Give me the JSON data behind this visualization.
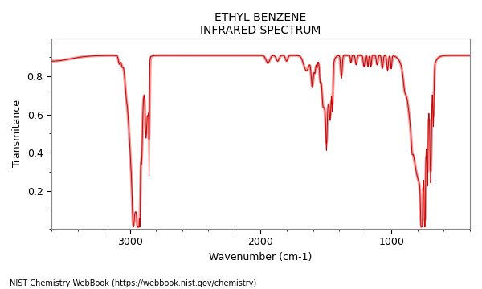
{
  "title_line1": "ETHYL BENZENE",
  "title_line2": "INFRARED SPECTRUM",
  "xlabel": "Wavenumber (cm-1)",
  "ylabel": "Transmitance",
  "footnote": "NIST Chemistry WebBook (https://webbook.nist.gov/chemistry)",
  "xmin": 3600,
  "xmax": 400,
  "ymin": 0.0,
  "ymax": 1.0,
  "line_color_thin": "#1a1a1a",
  "line_color_thick": "#e87070",
  "background_color": "#ffffff",
  "xticks": [
    3000,
    2000,
    1000
  ],
  "yticks": [
    0.2,
    0.4,
    0.6,
    0.8
  ]
}
